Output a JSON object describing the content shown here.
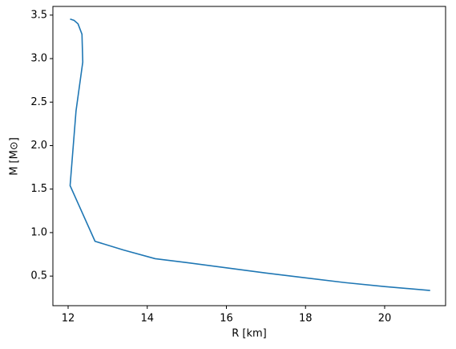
{
  "chart_data": {
    "type": "line",
    "xlabel": "R [km]",
    "ylabel": "M [M⊙]",
    "x": [
      12.05,
      12.15,
      12.25,
      12.35,
      12.37,
      12.2,
      12.05,
      12.68,
      13.4,
      14.2,
      15.0,
      16.0,
      17.0,
      18.0,
      19.0,
      20.0,
      21.15
    ],
    "series": [
      {
        "color": "#1f77b4",
        "values": [
          3.455,
          3.44,
          3.4,
          3.28,
          2.96,
          2.4,
          1.54,
          0.9,
          0.8,
          0.7,
          0.655,
          0.595,
          0.535,
          0.48,
          0.425,
          0.38,
          0.335
        ]
      }
    ],
    "xlim": [
      11.615,
      21.54
    ],
    "ylim": [
      0.16,
      3.6
    ],
    "xticks": [
      12,
      14,
      16,
      18,
      20
    ],
    "yticks": [
      0.5,
      {
        "value": 1,
        "label": "1.0"
      },
      1.5,
      {
        "value": 2,
        "label": "2.0"
      },
      2.5,
      {
        "value": 3,
        "label": "3.0"
      },
      3.5
    ]
  }
}
